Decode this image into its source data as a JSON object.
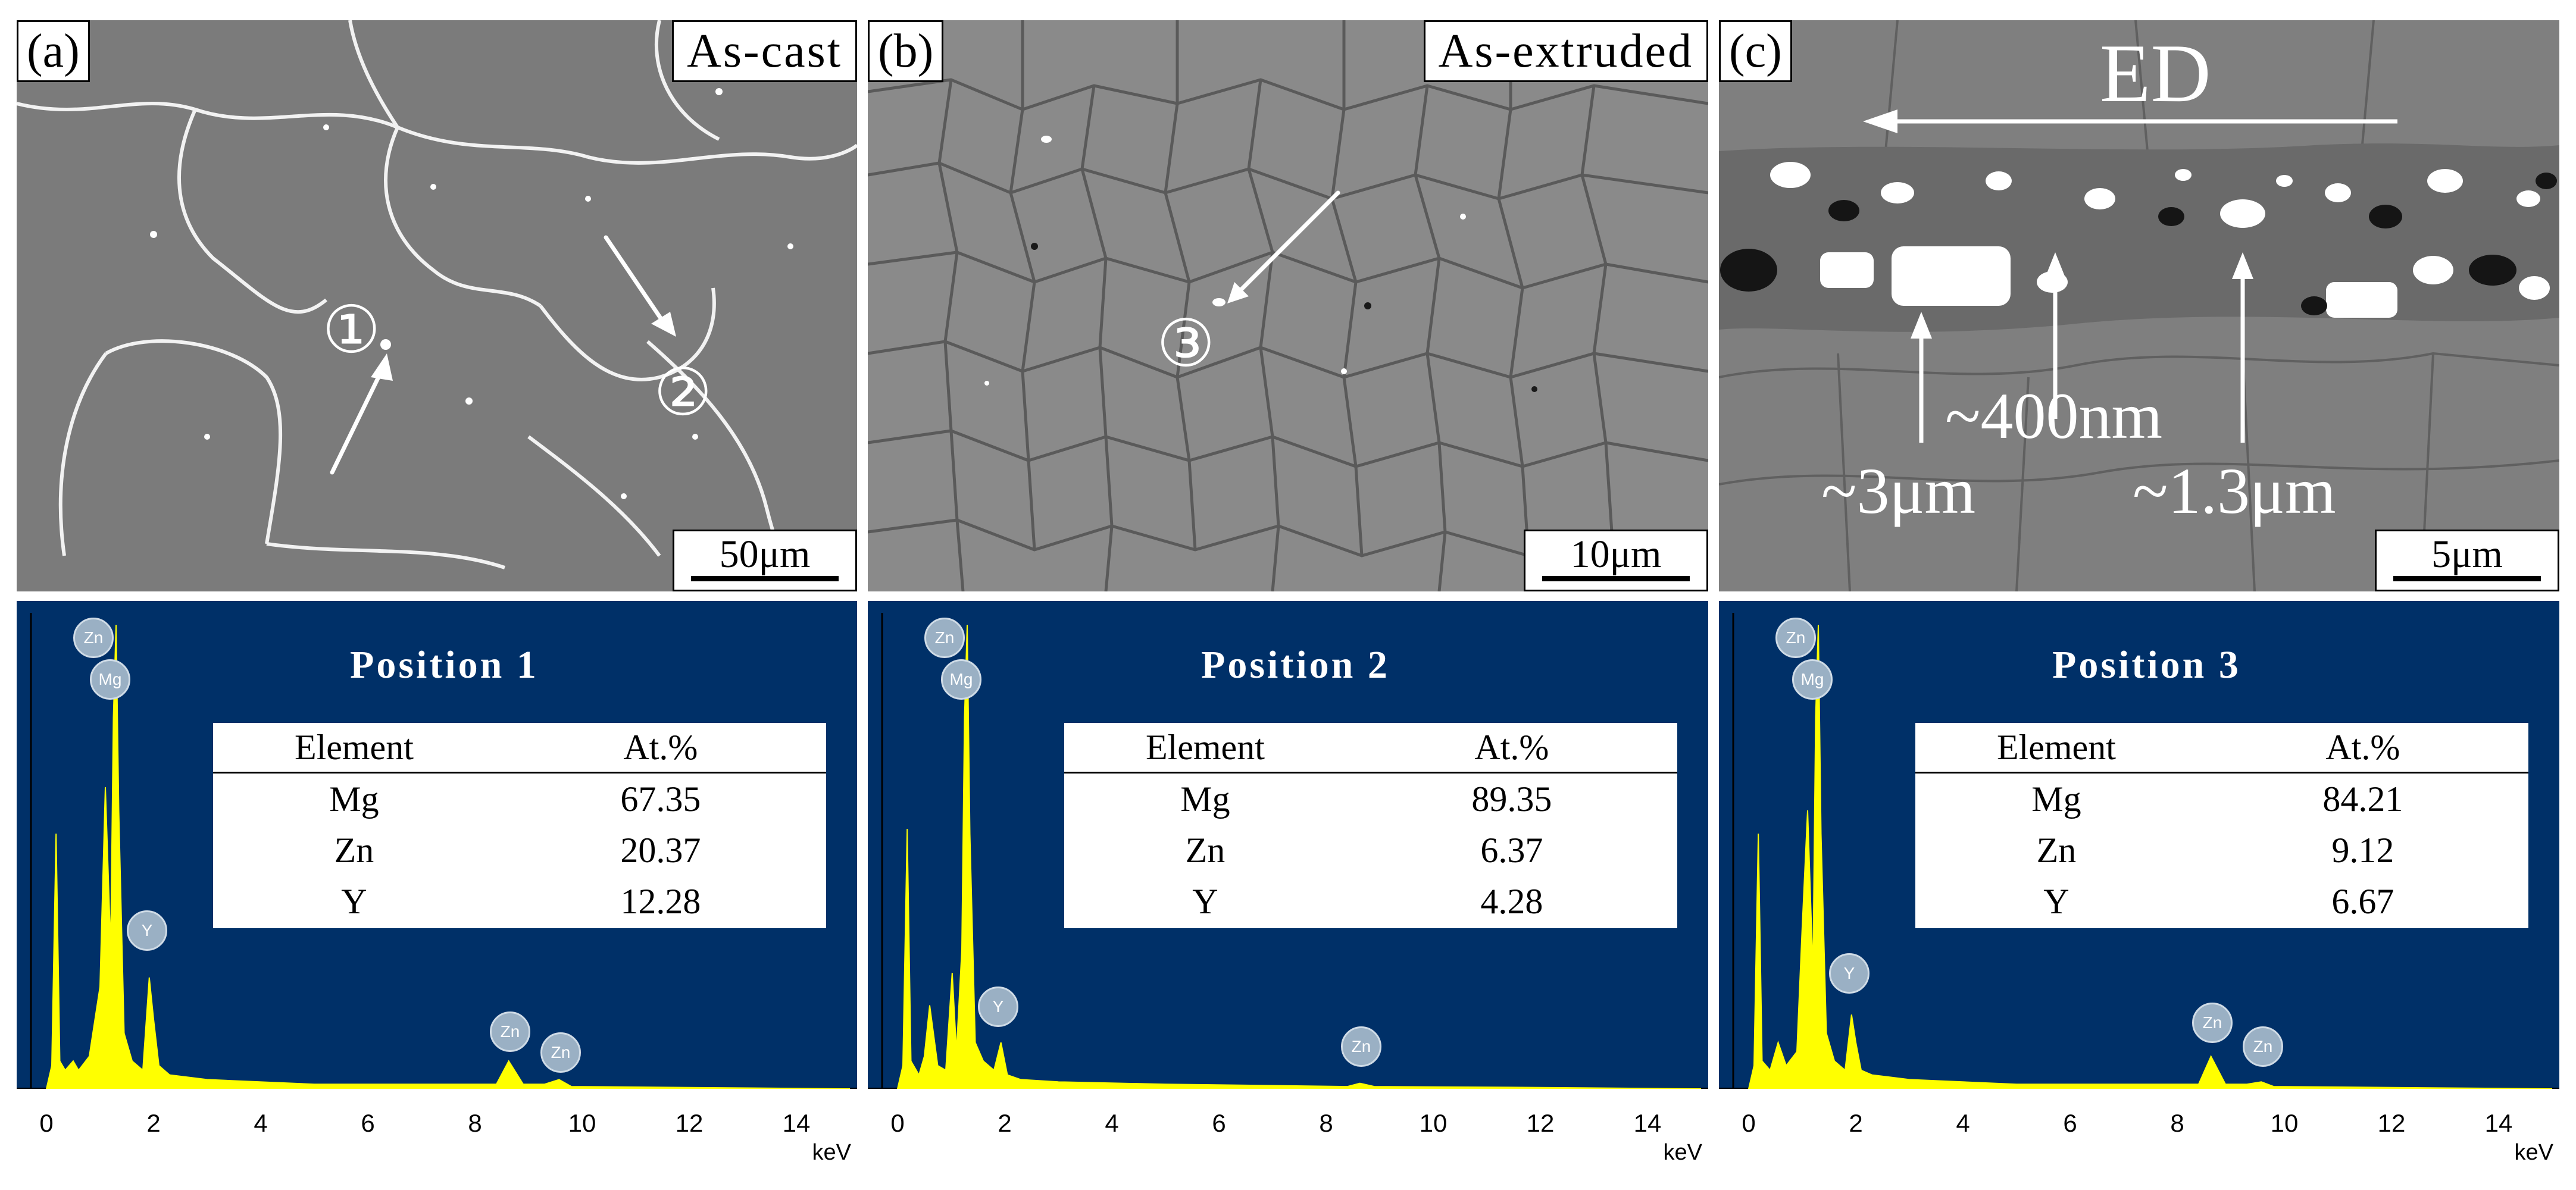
{
  "panels": [
    {
      "label": "(a)",
      "condition": "As-cast",
      "scale": "50μm",
      "markers": [
        "①",
        "②"
      ]
    },
    {
      "label": "(b)",
      "condition": "As-extruded",
      "scale": "10μm",
      "markers": [
        "③"
      ]
    },
    {
      "label": "(c)",
      "direction_label": "ED",
      "scale": "5μm",
      "sizes": [
        "~3μm",
        "~400nm",
        "~1.3μm"
      ]
    }
  ],
  "eds": [
    {
      "title": "Position 1",
      "header": [
        "Element",
        "At.%"
      ],
      "rows": [
        [
          "Mg",
          "67.35"
        ],
        [
          "Zn",
          "20.37"
        ],
        [
          "Y",
          "12.28"
        ]
      ],
      "peak_labels": [
        "Zn",
        "Mg",
        "Y",
        "Zn",
        "Zn"
      ]
    },
    {
      "title": "Position 2",
      "header": [
        "Element",
        "At.%"
      ],
      "rows": [
        [
          "Mg",
          "89.35"
        ],
        [
          "Zn",
          "6.37"
        ],
        [
          "Y",
          "4.28"
        ]
      ],
      "peak_labels": [
        "Zn",
        "Mg",
        "Y",
        "Zn"
      ]
    },
    {
      "title": "Position 3",
      "header": [
        "Element",
        "At.%"
      ],
      "rows": [
        [
          "Mg",
          "84.21"
        ],
        [
          "Zn",
          "9.12"
        ],
        [
          "Y",
          "6.67"
        ]
      ],
      "peak_labels": [
        "Zn",
        "Mg",
        "Y",
        "Zn",
        "Zn"
      ]
    }
  ],
  "axis": {
    "ticks": [
      "0",
      "2",
      "4",
      "6",
      "8",
      "10",
      "12",
      "14"
    ],
    "unit": "keV",
    "xlim": [
      0,
      15
    ]
  },
  "colors": {
    "eds_background": "#003068",
    "spectrum": "#ffff00",
    "sem_gray": "#7d7d7d"
  },
  "chart_data": [
    {
      "type": "line",
      "title": "Position 1",
      "xlabel": "keV",
      "xlim": [
        0,
        15
      ],
      "x": [
        0.0,
        0.1,
        0.18,
        0.25,
        0.35,
        0.5,
        0.6,
        0.8,
        1.0,
        1.1,
        1.2,
        1.25,
        1.3,
        1.35,
        1.45,
        1.6,
        1.8,
        1.92,
        2.0,
        2.1,
        2.3,
        3.0,
        5.0,
        8.4,
        8.63,
        8.9,
        9.3,
        9.57,
        9.8,
        12.0,
        15.0
      ],
      "y": [
        0,
        5,
        55,
        6,
        4,
        6,
        4,
        7,
        22,
        65,
        30,
        80,
        100,
        60,
        12,
        6,
        4,
        24,
        15,
        5,
        3,
        2,
        1,
        1,
        6,
        1,
        1,
        2,
        0.5,
        0.3,
        0
      ]
    },
    {
      "type": "line",
      "title": "Position 2",
      "xlabel": "keV",
      "xlim": [
        0,
        15
      ],
      "x": [
        0.0,
        0.1,
        0.18,
        0.25,
        0.4,
        0.5,
        0.6,
        0.75,
        0.9,
        1.02,
        1.1,
        1.2,
        1.25,
        1.3,
        1.35,
        1.45,
        1.6,
        1.8,
        1.93,
        2.05,
        2.3,
        3.0,
        5.0,
        8.4,
        8.63,
        8.9,
        12.0,
        15.0
      ],
      "y": [
        0,
        5,
        56,
        6,
        3,
        7,
        18,
        5,
        4,
        25,
        8,
        30,
        80,
        100,
        55,
        10,
        6,
        4,
        10,
        3,
        2,
        1.5,
        1,
        0.5,
        1.2,
        0.5,
        0.3,
        0
      ]
    },
    {
      "type": "line",
      "title": "Position 3",
      "xlabel": "keV",
      "xlim": [
        0,
        15
      ],
      "x": [
        0.0,
        0.1,
        0.18,
        0.25,
        0.4,
        0.55,
        0.7,
        0.9,
        1.0,
        1.1,
        1.2,
        1.25,
        1.3,
        1.35,
        1.45,
        1.6,
        1.8,
        1.92,
        2.0,
        2.1,
        2.3,
        3.0,
        5.0,
        8.4,
        8.63,
        8.9,
        9.3,
        9.57,
        9.8,
        12.0,
        15.0
      ],
      "y": [
        0,
        5,
        55,
        6,
        4,
        10,
        5,
        8,
        35,
        60,
        25,
        80,
        100,
        55,
        12,
        6,
        4,
        16,
        10,
        4,
        3,
        2,
        1,
        1,
        7,
        1,
        1,
        1.5,
        0.5,
        0.3,
        0
      ]
    }
  ]
}
